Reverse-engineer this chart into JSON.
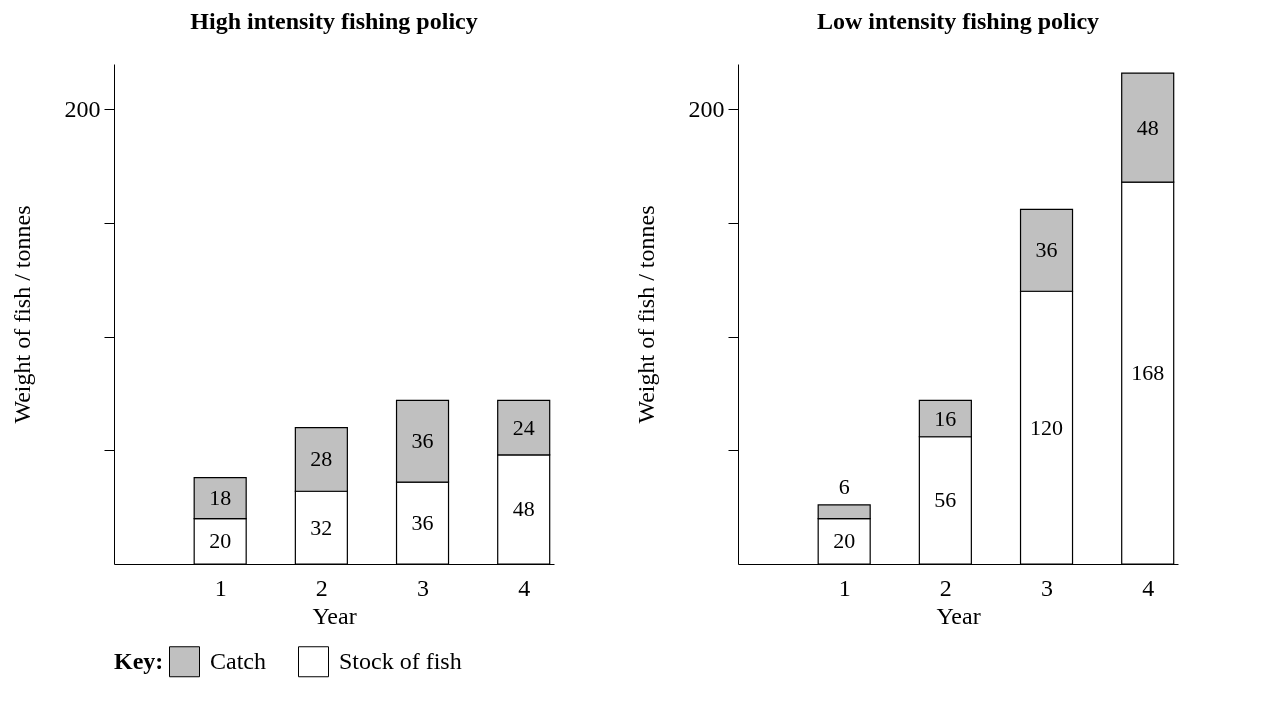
{
  "chart_data": [
    {
      "type": "bar",
      "title": "High intensity fishing policy",
      "xlabel": "Year",
      "ylabel": "Weight of fish / tonnes",
      "x": [
        1,
        2,
        3,
        4
      ],
      "xlim": [
        0,
        4.25
      ],
      "xticks": [
        1,
        2,
        3,
        4
      ],
      "ylim": [
        0,
        220
      ],
      "yticks": [
        {
          "value": 50,
          "label": null
        },
        {
          "value": 100,
          "label": null
        },
        {
          "value": 150,
          "label": null
        },
        200
      ],
      "stacked": true,
      "data_labels": true,
      "grid": false,
      "legend": "bottom",
      "legend_title": "Key:",
      "series": [
        {
          "name": "Stock of fish",
          "color": "#ffffff",
          "values": [
            20,
            32,
            36,
            48
          ]
        },
        {
          "name": "Catch",
          "color": "#c0c0c0",
          "values": [
            18,
            28,
            36,
            24
          ]
        }
      ]
    },
    {
      "type": "bar",
      "title": "Low intensity fishing policy",
      "xlabel": "Year",
      "ylabel": "Weight of fish / tonnes",
      "x": [
        1,
        2,
        3,
        4
      ],
      "xlim": [
        0,
        4.25
      ],
      "xticks": [
        1,
        2,
        3,
        4
      ],
      "ylim": [
        0,
        220
      ],
      "yticks": [
        {
          "value": 50,
          "label": null
        },
        {
          "value": 100,
          "label": null
        },
        {
          "value": 150,
          "label": null
        },
        200
      ],
      "stacked": true,
      "data_labels": true,
      "grid": false,
      "series": [
        {
          "color": "#ffffff",
          "values": [
            20,
            56,
            120,
            168
          ]
        },
        {
          "color": "#c0c0c0",
          "values": [
            6,
            16,
            36,
            48
          ]
        }
      ]
    }
  ]
}
